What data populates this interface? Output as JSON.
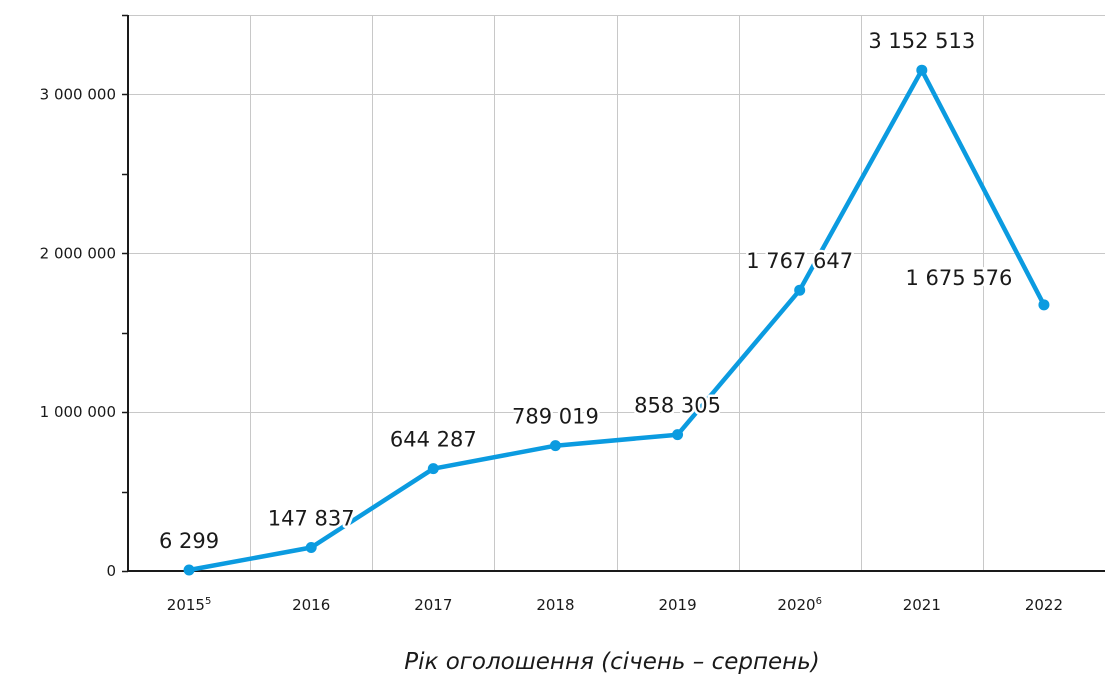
{
  "chart_data": {
    "type": "line",
    "title": "",
    "xlabel": "Рік  оголошення (січень – серпень)",
    "ylabel": "",
    "categories": [
      {
        "label": "2015",
        "sup": "5"
      },
      {
        "label": "2016",
        "sup": ""
      },
      {
        "label": "2017",
        "sup": ""
      },
      {
        "label": "2018",
        "sup": ""
      },
      {
        "label": "2019",
        "sup": ""
      },
      {
        "label": "2020",
        "sup": "6"
      },
      {
        "label": "2021",
        "sup": ""
      },
      {
        "label": "2022",
        "sup": ""
      }
    ],
    "series": [
      {
        "values": [
          6299,
          147837,
          644287,
          789019,
          858305,
          1767647,
          3152513,
          1675576
        ],
        "data_labels": [
          "6 299",
          "147 837",
          "644 287",
          "789 019",
          "858 305",
          "1 767 647",
          "3 152 513",
          "1 675 576"
        ],
        "color": "#0b9be0"
      }
    ],
    "ylim": [
      0,
      3500000
    ],
    "yticks": [
      {
        "value": 0,
        "label": "0"
      },
      {
        "value": 1000000,
        "label": "1 000 000"
      },
      {
        "value": 2000000,
        "label": "2 000 000"
      },
      {
        "value": 3000000,
        "label": "3 000 000"
      }
    ],
    "minor_ytick_step": 500000,
    "grid": true,
    "legend": "none"
  }
}
